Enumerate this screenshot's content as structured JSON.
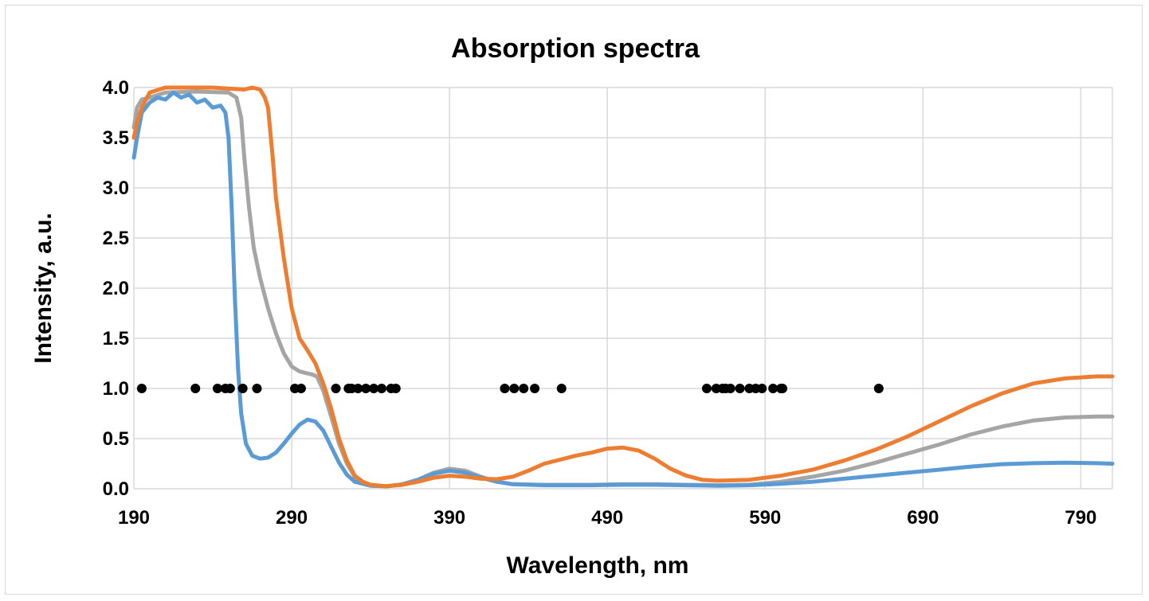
{
  "chart_data": {
    "type": "line",
    "title": "Absorption spectra",
    "xlabel": "Wavelength, nm",
    "ylabel": "Intensity, a.u.",
    "xlim": [
      190,
      810
    ],
    "ylim": [
      0,
      4.0
    ],
    "x_ticks": [
      190,
      290,
      390,
      490,
      590,
      690,
      790
    ],
    "y_ticks": [
      "0.0",
      "0.5",
      "1.0",
      "1.5",
      "2.0",
      "2.5",
      "3.0",
      "3.5",
      "4.0"
    ],
    "grid": true,
    "legend": "none",
    "series": [
      {
        "color": "#5b9bd5",
        "points": [
          [
            190,
            3.3
          ],
          [
            192,
            3.5
          ],
          [
            195,
            3.75
          ],
          [
            200,
            3.85
          ],
          [
            205,
            3.9
          ],
          [
            210,
            3.88
          ],
          [
            215,
            3.95
          ],
          [
            220,
            3.9
          ],
          [
            225,
            3.93
          ],
          [
            230,
            3.85
          ],
          [
            235,
            3.88
          ],
          [
            240,
            3.8
          ],
          [
            245,
            3.82
          ],
          [
            248,
            3.75
          ],
          [
            250,
            3.5
          ],
          [
            252,
            2.8
          ],
          [
            254,
            1.9
          ],
          [
            256,
            1.2
          ],
          [
            258,
            0.75
          ],
          [
            261,
            0.45
          ],
          [
            265,
            0.33
          ],
          [
            270,
            0.3
          ],
          [
            275,
            0.31
          ],
          [
            280,
            0.36
          ],
          [
            285,
            0.45
          ],
          [
            290,
            0.55
          ],
          [
            295,
            0.64
          ],
          [
            300,
            0.69
          ],
          [
            305,
            0.67
          ],
          [
            310,
            0.58
          ],
          [
            315,
            0.42
          ],
          [
            320,
            0.26
          ],
          [
            325,
            0.14
          ],
          [
            330,
            0.07
          ],
          [
            340,
            0.03
          ],
          [
            350,
            0.025
          ],
          [
            360,
            0.04
          ],
          [
            370,
            0.09
          ],
          [
            380,
            0.15
          ],
          [
            390,
            0.18
          ],
          [
            400,
            0.16
          ],
          [
            410,
            0.11
          ],
          [
            420,
            0.07
          ],
          [
            430,
            0.045
          ],
          [
            450,
            0.035
          ],
          [
            480,
            0.035
          ],
          [
            500,
            0.04
          ],
          [
            520,
            0.04
          ],
          [
            540,
            0.035
          ],
          [
            560,
            0.03
          ],
          [
            580,
            0.035
          ],
          [
            600,
            0.05
          ],
          [
            620,
            0.07
          ],
          [
            640,
            0.1
          ],
          [
            660,
            0.13
          ],
          [
            680,
            0.16
          ],
          [
            700,
            0.19
          ],
          [
            720,
            0.22
          ],
          [
            740,
            0.245
          ],
          [
            760,
            0.255
          ],
          [
            780,
            0.26
          ],
          [
            800,
            0.255
          ],
          [
            810,
            0.25
          ]
        ]
      },
      {
        "color": "#ed7d31",
        "points": [
          [
            190,
            3.5
          ],
          [
            192,
            3.65
          ],
          [
            195,
            3.8
          ],
          [
            200,
            3.95
          ],
          [
            210,
            4.0
          ],
          [
            220,
            4.0
          ],
          [
            240,
            4.0
          ],
          [
            260,
            3.98
          ],
          [
            265,
            4.0
          ],
          [
            270,
            3.98
          ],
          [
            273,
            3.9
          ],
          [
            275,
            3.8
          ],
          [
            278,
            3.3
          ],
          [
            280,
            2.9
          ],
          [
            285,
            2.3
          ],
          [
            290,
            1.8
          ],
          [
            295,
            1.5
          ],
          [
            300,
            1.38
          ],
          [
            305,
            1.25
          ],
          [
            310,
            1.05
          ],
          [
            315,
            0.8
          ],
          [
            320,
            0.5
          ],
          [
            325,
            0.28
          ],
          [
            330,
            0.13
          ],
          [
            335,
            0.07
          ],
          [
            340,
            0.04
          ],
          [
            350,
            0.025
          ],
          [
            360,
            0.04
          ],
          [
            370,
            0.07
          ],
          [
            380,
            0.11
          ],
          [
            390,
            0.13
          ],
          [
            400,
            0.12
          ],
          [
            410,
            0.1
          ],
          [
            420,
            0.095
          ],
          [
            430,
            0.12
          ],
          [
            440,
            0.18
          ],
          [
            450,
            0.25
          ],
          [
            460,
            0.29
          ],
          [
            470,
            0.33
          ],
          [
            480,
            0.36
          ],
          [
            490,
            0.4
          ],
          [
            500,
            0.41
          ],
          [
            510,
            0.38
          ],
          [
            520,
            0.3
          ],
          [
            530,
            0.2
          ],
          [
            540,
            0.13
          ],
          [
            550,
            0.09
          ],
          [
            560,
            0.08
          ],
          [
            580,
            0.09
          ],
          [
            600,
            0.13
          ],
          [
            620,
            0.19
          ],
          [
            640,
            0.28
          ],
          [
            660,
            0.39
          ],
          [
            680,
            0.52
          ],
          [
            700,
            0.67
          ],
          [
            720,
            0.82
          ],
          [
            740,
            0.95
          ],
          [
            760,
            1.05
          ],
          [
            780,
            1.1
          ],
          [
            800,
            1.12
          ],
          [
            810,
            1.12
          ]
        ]
      },
      {
        "color": "#a5a5a5",
        "points": [
          [
            190,
            3.6
          ],
          [
            192,
            3.8
          ],
          [
            195,
            3.88
          ],
          [
            200,
            3.9
          ],
          [
            210,
            3.95
          ],
          [
            230,
            3.96
          ],
          [
            250,
            3.95
          ],
          [
            255,
            3.9
          ],
          [
            258,
            3.7
          ],
          [
            260,
            3.3
          ],
          [
            263,
            2.8
          ],
          [
            266,
            2.4
          ],
          [
            270,
            2.1
          ],
          [
            275,
            1.8
          ],
          [
            280,
            1.55
          ],
          [
            285,
            1.35
          ],
          [
            290,
            1.22
          ],
          [
            295,
            1.17
          ],
          [
            300,
            1.15
          ],
          [
            303,
            1.14
          ],
          [
            306,
            1.12
          ],
          [
            310,
            0.98
          ],
          [
            315,
            0.72
          ],
          [
            320,
            0.45
          ],
          [
            325,
            0.25
          ],
          [
            330,
            0.12
          ],
          [
            335,
            0.06
          ],
          [
            340,
            0.035
          ],
          [
            350,
            0.025
          ],
          [
            360,
            0.045
          ],
          [
            370,
            0.09
          ],
          [
            380,
            0.16
          ],
          [
            390,
            0.2
          ],
          [
            400,
            0.18
          ],
          [
            410,
            0.12
          ],
          [
            420,
            0.07
          ],
          [
            430,
            0.045
          ],
          [
            450,
            0.04
          ],
          [
            480,
            0.04
          ],
          [
            500,
            0.045
          ],
          [
            520,
            0.045
          ],
          [
            540,
            0.04
          ],
          [
            560,
            0.035
          ],
          [
            580,
            0.04
          ],
          [
            600,
            0.07
          ],
          [
            620,
            0.12
          ],
          [
            640,
            0.18
          ],
          [
            660,
            0.26
          ],
          [
            680,
            0.35
          ],
          [
            700,
            0.44
          ],
          [
            720,
            0.54
          ],
          [
            740,
            0.62
          ],
          [
            760,
            0.68
          ],
          [
            780,
            0.71
          ],
          [
            800,
            0.72
          ],
          [
            810,
            0.72
          ]
        ]
      },
      {
        "color": "#000000",
        "type": "scatter",
        "points": [
          [
            195,
            1.0
          ],
          [
            229,
            1.0
          ],
          [
            243,
            1.0
          ],
          [
            248,
            1.0
          ],
          [
            251,
            1.0
          ],
          [
            259,
            1.0
          ],
          [
            268,
            1.0
          ],
          [
            292,
            1.0
          ],
          [
            296,
            1.0
          ],
          [
            318,
            1.0
          ],
          [
            326,
            1.0
          ],
          [
            328,
            1.0
          ],
          [
            332,
            1.0
          ],
          [
            337,
            1.0
          ],
          [
            342,
            1.0
          ],
          [
            347,
            1.0
          ],
          [
            353,
            1.0
          ],
          [
            356,
            1.0
          ],
          [
            425,
            1.0
          ],
          [
            431,
            1.0
          ],
          [
            437,
            1.0
          ],
          [
            444,
            1.0
          ],
          [
            461,
            1.0
          ],
          [
            553,
            1.0
          ],
          [
            559,
            1.0
          ],
          [
            563,
            1.0
          ],
          [
            565,
            1.0
          ],
          [
            568,
            1.0
          ],
          [
            574,
            1.0
          ],
          [
            580,
            1.0
          ],
          [
            584,
            1.0
          ],
          [
            588,
            1.0
          ],
          [
            595,
            1.0
          ],
          [
            600,
            1.0
          ],
          [
            601,
            1.0
          ],
          [
            662,
            1.0
          ]
        ]
      }
    ]
  }
}
